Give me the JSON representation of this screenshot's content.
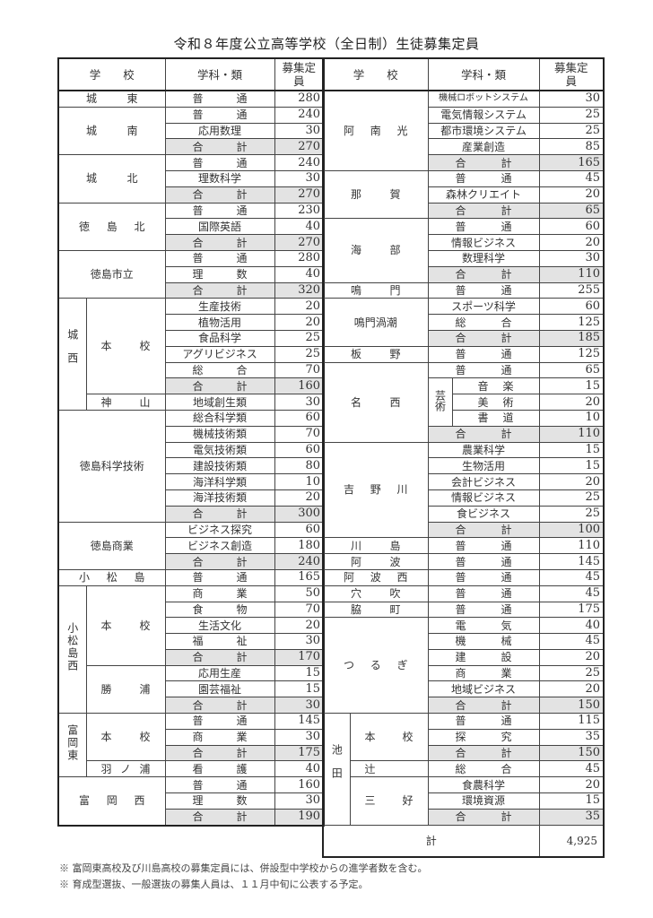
{
  "title": "令和８年度公立高等学校（全日制）生徒募集定員",
  "headers": {
    "school": "学　　校",
    "subject": "学科・類",
    "capacity": "募集定員"
  },
  "left": [
    {
      "name": "城東",
      "subjects": [
        [
          "普通",
          "280"
        ]
      ]
    },
    {
      "name": "城南",
      "subjects": [
        [
          "普通",
          "240"
        ],
        [
          "応用数理",
          "30"
        ],
        [
          "合計",
          "270"
        ]
      ]
    },
    {
      "name": "城北",
      "subjects": [
        [
          "普通",
          "240"
        ],
        [
          "理数科学",
          "30"
        ],
        [
          "合計",
          "270"
        ]
      ]
    },
    {
      "name": "徳島北",
      "subjects": [
        [
          "普通",
          "230"
        ],
        [
          "国際英語",
          "40"
        ],
        [
          "合計",
          "270"
        ]
      ]
    },
    {
      "name": "徳島市立",
      "subjects": [
        [
          "普通",
          "280"
        ],
        [
          "理数",
          "40"
        ],
        [
          "合計",
          "320"
        ]
      ]
    },
    {
      "name": "城西",
      "campuses": [
        {
          "name": "本校",
          "subjects": [
            [
              "生産技術",
              "20"
            ],
            [
              "植物活用",
              "20"
            ],
            [
              "食品科学",
              "25"
            ],
            [
              "アグリビジネス",
              "25"
            ],
            [
              "総合",
              "70"
            ],
            [
              "合計",
              "160"
            ]
          ]
        },
        {
          "name": "神山",
          "subjects": [
            [
              "地域創生類",
              "30"
            ]
          ]
        }
      ]
    },
    {
      "name": "徳島科学技術",
      "subjects": [
        [
          "総合科学類",
          "60"
        ],
        [
          "機械技術類",
          "70"
        ],
        [
          "電気技術類",
          "60"
        ],
        [
          "建設技術類",
          "80"
        ],
        [
          "海洋科学類",
          "10"
        ],
        [
          "海洋技術類",
          "20"
        ],
        [
          "合計",
          "300"
        ]
      ]
    },
    {
      "name": "徳島商業",
      "subjects": [
        [
          "ビジネス探究",
          "60"
        ],
        [
          "ビジネス創造",
          "180"
        ],
        [
          "合計",
          "240"
        ]
      ]
    },
    {
      "name": "小松島",
      "subjects": [
        [
          "普通",
          "165"
        ]
      ]
    },
    {
      "name": "小松島西",
      "campuses": [
        {
          "name": "本校",
          "subjects": [
            [
              "商業",
              "50"
            ],
            [
              "食物",
              "70"
            ],
            [
              "生活文化",
              "20"
            ],
            [
              "福祉",
              "30"
            ],
            [
              "合計",
              "170"
            ]
          ]
        },
        {
          "name": "勝浦",
          "subjects": [
            [
              "応用生産",
              "15"
            ],
            [
              "園芸福祉",
              "15"
            ],
            [
              "合計",
              "30"
            ]
          ]
        }
      ]
    },
    {
      "name": "富岡東",
      "campuses": [
        {
          "name": "本校",
          "subjects": [
            [
              "普通",
              "145"
            ],
            [
              "商業",
              "30"
            ],
            [
              "合計",
              "175"
            ]
          ]
        },
        {
          "name": "羽ノ浦",
          "subjects": [
            [
              "看護",
              "40"
            ]
          ]
        }
      ]
    },
    {
      "name": "富岡西",
      "subjects": [
        [
          "普通",
          "160"
        ],
        [
          "理数",
          "30"
        ],
        [
          "合計",
          "190"
        ]
      ]
    }
  ],
  "right": [
    {
      "name": "阿南光",
      "subjects": [
        [
          "機械ロボットシステム",
          "30"
        ],
        [
          "電気情報システム",
          "25"
        ],
        [
          "都市環境システム",
          "25"
        ],
        [
          "産業創造",
          "85"
        ],
        [
          "合計",
          "165"
        ]
      ]
    },
    {
      "name": "那賀",
      "subjects": [
        [
          "普通",
          "45"
        ],
        [
          "森林クリエイト",
          "20"
        ],
        [
          "合計",
          "65"
        ]
      ]
    },
    {
      "name": "海部",
      "subjects": [
        [
          "普通",
          "60"
        ],
        [
          "情報ビジネス",
          "20"
        ],
        [
          "数理科学",
          "30"
        ],
        [
          "合計",
          "110"
        ]
      ]
    },
    {
      "name": "鳴門",
      "subjects": [
        [
          "普通",
          "255"
        ]
      ]
    },
    {
      "name": "鳴門渦潮",
      "subjects": [
        [
          "スポーツ科学",
          "60"
        ],
        [
          "総合",
          "125"
        ],
        [
          "合計",
          "185"
        ]
      ]
    },
    {
      "name": "板野",
      "subjects": [
        [
          "普通",
          "125"
        ]
      ]
    },
    {
      "name": "名西",
      "subjects": [
        [
          "普通",
          "65"
        ],
        {
          "group": "芸術",
          "items": [
            [
              "音楽",
              "15"
            ],
            [
              "美術",
              "20"
            ],
            [
              "書道",
              "10"
            ]
          ]
        },
        [
          "合計",
          "110"
        ]
      ]
    },
    {
      "name": "吉野川",
      "subjects": [
        [
          "農業科学",
          "15"
        ],
        [
          "生物活用",
          "15"
        ],
        [
          "会計ビジネス",
          "20"
        ],
        [
          "情報ビジネス",
          "25"
        ],
        [
          "食ビジネス",
          "25"
        ],
        [
          "合計",
          "100"
        ]
      ]
    },
    {
      "name": "川島",
      "subjects": [
        [
          "普通",
          "110"
        ]
      ]
    },
    {
      "name": "阿波",
      "subjects": [
        [
          "普通",
          "145"
        ]
      ]
    },
    {
      "name": "阿波西",
      "subjects": [
        [
          "普通",
          "45"
        ]
      ]
    },
    {
      "name": "穴吹",
      "subjects": [
        [
          "普通",
          "45"
        ]
      ]
    },
    {
      "name": "脇町",
      "subjects": [
        [
          "普通",
          "175"
        ]
      ]
    },
    {
      "name": "つるぎ",
      "subjects": [
        [
          "電気",
          "40"
        ],
        [
          "機械",
          "45"
        ],
        [
          "建設",
          "20"
        ],
        [
          "商業",
          "25"
        ],
        [
          "地域ビジネス",
          "20"
        ],
        [
          "合計",
          "150"
        ]
      ]
    },
    {
      "name": "池田",
      "campuses": [
        {
          "name": "本校",
          "subjects": [
            [
              "普通",
              "115"
            ],
            [
              "探究",
              "35"
            ],
            [
              "合計",
              "150"
            ]
          ]
        },
        {
          "name": "辻",
          "subjects": [
            [
              "総合",
              "45"
            ]
          ]
        },
        {
          "name": "三好",
          "subjects": [
            [
              "食農科学",
              "20"
            ],
            [
              "環境資源",
              "15"
            ],
            [
              "合計",
              "35"
            ]
          ]
        }
      ]
    }
  ],
  "grand_total": {
    "label": "計",
    "value": "4,925"
  },
  "notes": [
    "※ 富岡東高校及び川島高校の募集定員には、併設型中学校からの進学者数を含む。",
    "※ 育成型選抜、一般選抜の募集人員は、１１月中旬に公表する予定。"
  ],
  "colors": {
    "subtotal_fill": "#e3e3e3",
    "border": "#222222"
  }
}
